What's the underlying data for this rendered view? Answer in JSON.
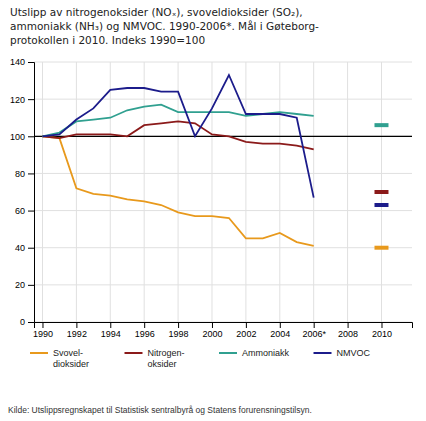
{
  "chart_data": {
    "type": "line",
    "title": "Utslipp av nitrogenoksider (NOₓ), svoveldioksider (SO₂),\nammoniakk (NH₃) og NMVOC. 1990-2006*. Mål i Gøteborg-\nprotokollen i 2010. Indeks 1990=100",
    "source": "Kilde: Utslippsregnskapet til Statistisk sentralbyrå og Statens forurensningstilsyn.",
    "x": [
      1990,
      1991,
      1992,
      1993,
      1994,
      1995,
      1996,
      1997,
      1998,
      1999,
      2000,
      2001,
      2002,
      2003,
      2004,
      2005,
      2006
    ],
    "xlim": [
      1989.5,
      2011.8
    ],
    "xticks": [
      1990,
      1992,
      1994,
      1996,
      1998,
      2000,
      2002,
      2004,
      {
        "value": 2006,
        "label": "2006*"
      },
      2008,
      2010
    ],
    "ylim": [
      0,
      140
    ],
    "yticks": [
      0,
      20,
      40,
      60,
      80,
      100,
      120,
      140
    ],
    "grid": true,
    "legend": "bottom",
    "reference_line": 100,
    "series": [
      {
        "name": "Svovel-\ndioksider",
        "color": "#E8991C",
        "values": [
          100,
          99,
          72,
          69,
          68,
          66,
          65,
          63,
          59,
          57,
          57,
          56,
          45,
          45,
          48,
          43,
          41
        ],
        "target_x": 2010,
        "target_y": 40
      },
      {
        "name": "Nitrogen-\noksider",
        "color": "#8B1A1A",
        "values": [
          100,
          99,
          101,
          101,
          101,
          100,
          106,
          107,
          108,
          107,
          101,
          100,
          97,
          96,
          96,
          95,
          93
        ],
        "target_x": 2010,
        "target_y": 70
      },
      {
        "name": "Ammoniakk",
        "color": "#30A090",
        "values": [
          100,
          102,
          108,
          109,
          110,
          114,
          116,
          117,
          113,
          113,
          113,
          113,
          111,
          112,
          113,
          112,
          111
        ],
        "target_x": 2010,
        "target_y": 106
      },
      {
        "name": "NMVOC",
        "color": "#1C1C8B",
        "values": [
          100,
          101,
          109,
          115,
          125,
          126,
          126,
          124,
          124,
          100,
          115,
          133,
          112,
          112,
          112,
          110,
          67
        ],
        "target_x": 2010,
        "target_y": 63
      }
    ]
  }
}
